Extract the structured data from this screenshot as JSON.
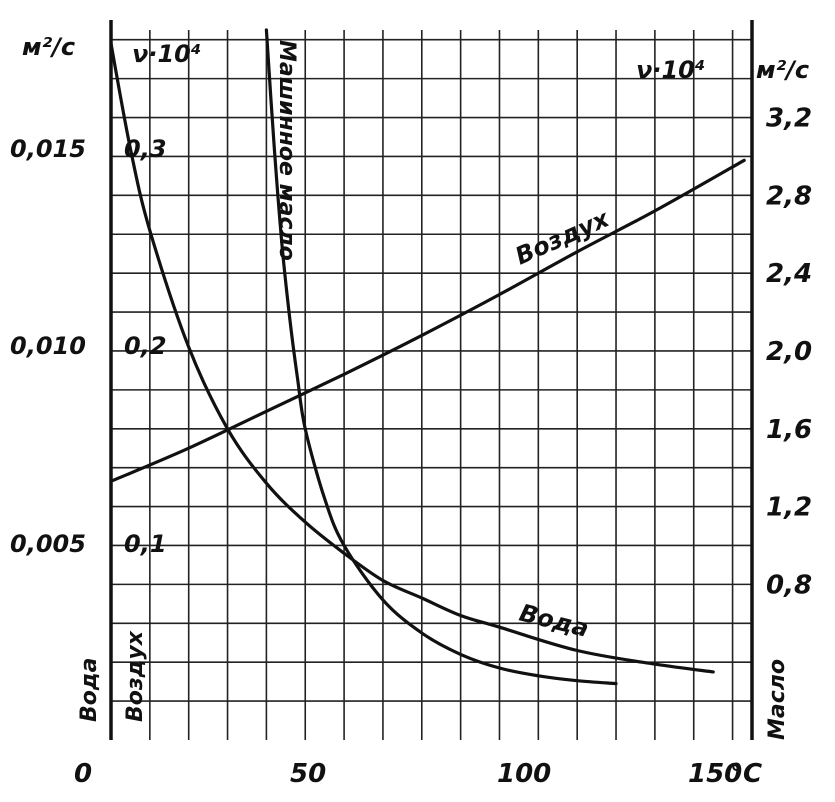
{
  "chart_data": {
    "type": "line",
    "xlabel": "°C",
    "x_ticks": [
      "0",
      "50",
      "100",
      "150"
    ],
    "xlim": [
      0,
      165
    ],
    "grid": true,
    "axes": {
      "far_left": {
        "unit": "м²/с",
        "ticks": [
          "0,005",
          "0,010",
          "0,015"
        ],
        "ylim": [
          0,
          0.01825
        ],
        "bottom_label": "Вода"
      },
      "inner_left": {
        "header": "ν·10⁴",
        "ticks": [
          "0,1",
          "0,2",
          "0,3"
        ],
        "ylim": [
          0,
          0.365
        ],
        "bottom_label": "Воздух"
      },
      "right": {
        "header": "ν·10⁴",
        "unit": "м²/с",
        "ticks": [
          "0,8",
          "1,2",
          "1,6",
          "2,0",
          "2,4",
          "2,8",
          "3,2"
        ],
        "ylim": [
          0,
          3.65
        ],
        "bottom_label": "Масло"
      }
    },
    "series": [
      {
        "name": "Воздух",
        "axis": "inner_left",
        "x": [
          0,
          20,
          40,
          60,
          80,
          100,
          120,
          140,
          163
        ],
        "y": [
          0.133,
          0.15,
          0.169,
          0.188,
          0.208,
          0.229,
          0.251,
          0.272,
          0.298
        ]
      },
      {
        "name": "Вода",
        "axis": "far_left",
        "x": [
          0,
          5,
          10,
          20,
          30,
          40,
          50,
          60,
          70,
          80,
          90,
          100,
          120,
          140,
          155
        ],
        "y": [
          0.0179,
          0.0152,
          0.0131,
          0.0101,
          0.008,
          0.0066,
          0.0056,
          0.0048,
          0.0041,
          0.00365,
          0.0032,
          0.0029,
          0.0023,
          0.00195,
          0.00175
        ]
      },
      {
        "name": "Машинное масло",
        "axis": "right",
        "x": [
          40,
          42,
          44,
          46,
          48,
          50,
          55,
          60,
          70,
          80,
          90,
          100,
          110,
          120,
          130
        ],
        "y": [
          3.65,
          3.05,
          2.55,
          2.17,
          1.86,
          1.6,
          1.24,
          1.0,
          0.72,
          0.55,
          0.44,
          0.37,
          0.33,
          0.305,
          0.29
        ]
      }
    ],
    "annotations": {
      "air": "Воздух",
      "water": "Вода",
      "oil": "Машинное масло"
    }
  }
}
